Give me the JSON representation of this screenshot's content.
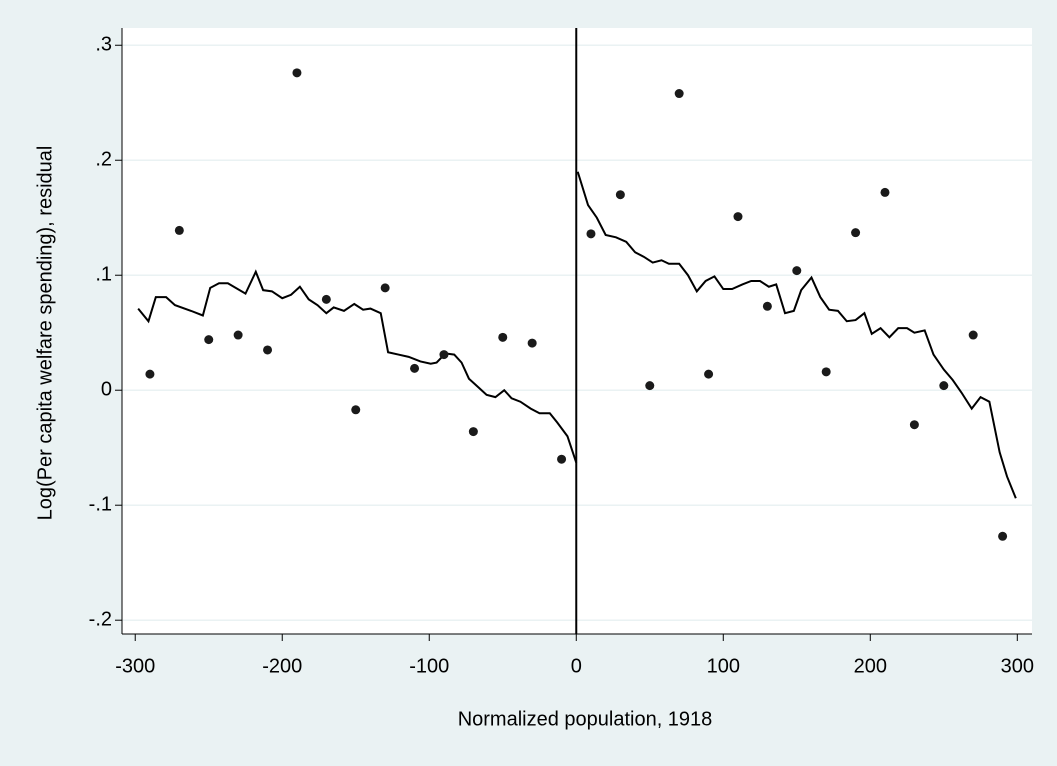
{
  "chart_data": {
    "type": "scatter",
    "xlabel": "Normalized population, 1918",
    "ylabel": "Log(Per capita welfare spending), residual",
    "xlim": [
      -309,
      310
    ],
    "ylim": [
      -0.212,
      0.315
    ],
    "xticks": [
      -300,
      -200,
      -100,
      0,
      100,
      200,
      300
    ],
    "yticks": [
      {
        "value": 0.3,
        "label": ".3"
      },
      {
        "value": 0.2,
        "label": ".2"
      },
      {
        "value": 0.1,
        "label": ".1"
      },
      0,
      {
        "value": -0.1,
        "label": "-.1"
      },
      {
        "value": -0.2,
        "label": "-.2"
      }
    ],
    "grid": true,
    "color": "#1a1a1a",
    "line_color": "#000000",
    "xline": 0,
    "x": [
      -290,
      -270,
      -250,
      -230,
      -210,
      -190,
      -170,
      -150,
      -130,
      -110,
      -90,
      -70,
      -50,
      -30,
      -10,
      10,
      30,
      50,
      70,
      90,
      110,
      130,
      150,
      170,
      190,
      210,
      230,
      250,
      270,
      290
    ],
    "values": [
      0.014,
      0.139,
      0.044,
      0.048,
      0.035,
      0.276,
      0.079,
      -0.017,
      0.089,
      0.019,
      0.031,
      -0.036,
      0.046,
      0.041,
      -0.06,
      0.136,
      0.17,
      0.004,
      0.258,
      0.014,
      0.151,
      0.073,
      0.104,
      0.016,
      0.137,
      0.172,
      -0.03,
      0.004,
      0.048,
      -0.127
    ],
    "lines": [
      {
        "x": [
          -298,
          -291,
          -286,
          -279,
          -273,
          -262,
          -254,
          -249,
          -243,
          -237,
          -225,
          -218,
          -213,
          -207,
          -200,
          -194,
          -188,
          -182,
          -176,
          -170,
          -165,
          -158,
          -151,
          -145,
          -140,
          -133,
          -128,
          -121,
          -114,
          -106,
          -99,
          -95,
          -89,
          -83,
          -78,
          -73,
          -67,
          -61,
          -55,
          -49,
          -44,
          -38,
          -31,
          -25,
          -18,
          -13,
          -6,
          0
        ],
        "values": [
          0.071,
          0.06,
          0.081,
          0.081,
          0.074,
          0.069,
          0.065,
          0.089,
          0.093,
          0.093,
          0.084,
          0.103,
          0.087,
          0.086,
          0.08,
          0.083,
          0.09,
          0.079,
          0.074,
          0.067,
          0.072,
          0.069,
          0.075,
          0.07,
          0.071,
          0.067,
          0.033,
          0.031,
          0.029,
          0.025,
          0.023,
          0.024,
          0.032,
          0.031,
          0.024,
          0.01,
          0.003,
          -0.004,
          -0.006,
          0.0,
          -0.007,
          -0.01,
          -0.016,
          -0.02,
          -0.02,
          -0.028,
          -0.04,
          -0.063
        ]
      },
      {
        "x": [
          1,
          8,
          14,
          20,
          27,
          34,
          40,
          46,
          52,
          58,
          63,
          70,
          76,
          82,
          88,
          94,
          100,
          106,
          113,
          119,
          125,
          131,
          136,
          142,
          148,
          153,
          160,
          166,
          172,
          178,
          184,
          190,
          196,
          201,
          207,
          213,
          219,
          225,
          230,
          237,
          243,
          250,
          256,
          262,
          269,
          275,
          281,
          288,
          293,
          299
        ],
        "values": [
          0.19,
          0.161,
          0.15,
          0.135,
          0.133,
          0.129,
          0.12,
          0.116,
          0.111,
          0.113,
          0.11,
          0.11,
          0.1,
          0.086,
          0.095,
          0.099,
          0.088,
          0.088,
          0.092,
          0.095,
          0.095,
          0.09,
          0.092,
          0.067,
          0.069,
          0.087,
          0.098,
          0.081,
          0.07,
          0.069,
          0.06,
          0.061,
          0.067,
          0.049,
          0.054,
          0.046,
          0.054,
          0.054,
          0.05,
          0.052,
          0.031,
          0.018,
          0.009,
          -0.002,
          -0.016,
          -0.006,
          -0.01,
          -0.054,
          -0.075,
          -0.094
        ]
      }
    ]
  }
}
